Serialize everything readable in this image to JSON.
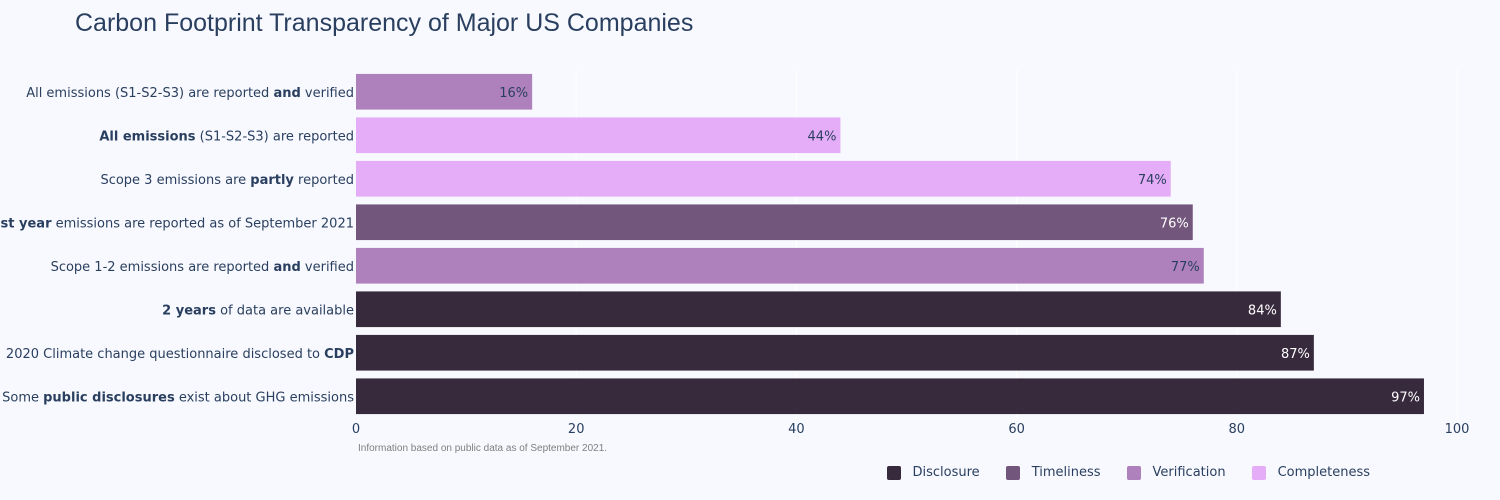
{
  "title": "Carbon Footprint Transparency of Major US Companies",
  "footnote": "Information based on public data as of September 2021.",
  "colors": {
    "Disclosure": "#372a3d",
    "Timeliness": "#72567c",
    "Verification": "#ae80bc",
    "Completeness": "#e5adf8"
  },
  "chart_data": {
    "type": "bar",
    "orientation": "horizontal",
    "title": "Carbon Footprint Transparency of Major US Companies",
    "xlim": [
      0,
      100
    ],
    "xticks": [
      0,
      20,
      40,
      60,
      80,
      100
    ],
    "grid": true,
    "legend_position": "bottom-right",
    "legend": [
      "Disclosure",
      "Timeliness",
      "Verification",
      "Completeness"
    ],
    "bars": [
      {
        "label_parts": [
          [
            "All emissions (S1-S2-S3) are reported ",
            false
          ],
          [
            "and",
            true
          ],
          [
            " verified",
            false
          ]
        ],
        "value": 16,
        "text": "16%",
        "group": "Verification"
      },
      {
        "label_parts": [
          [
            "All emissions",
            true
          ],
          [
            " (S1-S2-S3) are reported",
            false
          ]
        ],
        "value": 44,
        "text": "44%",
        "group": "Completeness"
      },
      {
        "label_parts": [
          [
            "Scope 3 emissions are ",
            false
          ],
          [
            "partly",
            true
          ],
          [
            " reported",
            false
          ]
        ],
        "value": 74,
        "text": "74%",
        "group": "Completeness"
      },
      {
        "label_parts": [
          [
            "Last year",
            true
          ],
          [
            " emissions are reported as of September 2021",
            false
          ]
        ],
        "value": 76,
        "text": "76%",
        "group": "Timeliness"
      },
      {
        "label_parts": [
          [
            "Scope 1-2 emissions are reported ",
            false
          ],
          [
            "and",
            true
          ],
          [
            " verified",
            false
          ]
        ],
        "value": 77,
        "text": "77%",
        "group": "Verification"
      },
      {
        "label_parts": [
          [
            "2 years",
            true
          ],
          [
            " of data are available",
            false
          ]
        ],
        "value": 84,
        "text": "84%",
        "group": "Disclosure"
      },
      {
        "label_parts": [
          [
            "2020 Climate change questionnaire disclosed to ",
            false
          ],
          [
            "CDP",
            true
          ]
        ],
        "value": 87,
        "text": "87%",
        "group": "Disclosure"
      },
      {
        "label_parts": [
          [
            "Some ",
            false
          ],
          [
            "public disclosures",
            true
          ],
          [
            " exist about GHG emissions",
            false
          ]
        ],
        "value": 97,
        "text": "97%",
        "group": "Disclosure"
      }
    ]
  }
}
